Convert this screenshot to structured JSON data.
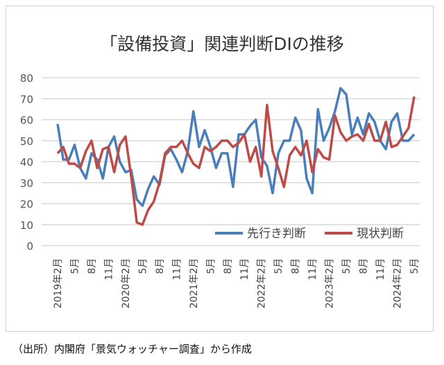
{
  "chart_data": {
    "type": "line",
    "title": "「設備投資」関連判断DIの推移",
    "source": "（出所）内閣府「景気ウォッチャー調査」から作成",
    "ylim": [
      0,
      80
    ],
    "yticks": [
      0,
      10,
      20,
      30,
      40,
      50,
      60,
      70,
      80
    ],
    "grid": true,
    "legend_position": "bottom-right",
    "xtick_labels": [
      "2019年2月",
      "5月",
      "8月",
      "11月",
      "2020年2月",
      "5月",
      "8月",
      "11月",
      "2021年2月",
      "5月",
      "8月",
      "11月",
      "2022年2月",
      "5月",
      "8月",
      "11月",
      "2023年2月",
      "5月",
      "8月",
      "11月",
      "2024年2月",
      "5月"
    ],
    "x_start": "2019年2月",
    "x_end": "2024年5月",
    "series": [
      {
        "name": "先行き判断",
        "color": "#4a7ebb",
        "values": [
          58,
          41,
          41,
          48,
          37,
          32,
          44,
          41,
          32,
          47,
          52,
          40,
          35,
          36,
          22,
          19,
          27,
          33,
          29,
          43,
          46,
          41,
          35,
          45,
          64,
          47,
          55,
          47,
          37,
          44,
          44,
          28,
          53,
          53,
          57,
          60,
          42,
          38,
          25,
          44,
          50,
          50,
          61,
          55,
          32,
          25,
          65,
          50,
          56,
          64,
          75,
          72,
          53,
          61,
          53,
          63,
          59,
          50,
          46,
          59,
          63,
          50,
          50,
          53
        ]
      },
      {
        "name": "現状判断",
        "color": "#be4b48",
        "values": [
          44,
          47,
          39,
          39,
          37,
          45,
          50,
          37,
          46,
          47,
          35,
          48,
          52,
          33,
          11,
          10,
          17,
          21,
          30,
          44,
          47,
          47,
          50,
          44,
          39,
          37,
          47,
          45,
          47,
          50,
          50,
          47,
          49,
          53,
          40,
          47,
          33,
          67,
          45,
          37,
          28,
          43,
          47,
          43,
          50,
          35,
          46,
          42,
          41,
          62,
          54,
          50,
          52,
          53,
          50,
          58,
          50,
          50,
          59,
          47,
          48,
          52,
          56,
          71
        ]
      }
    ]
  }
}
